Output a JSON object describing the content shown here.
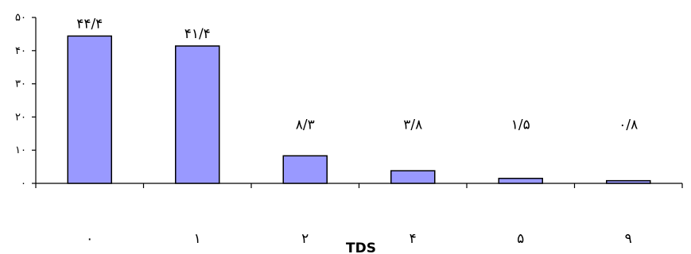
{
  "chart_data": {
    "type": "bar",
    "categories": [
      "۰",
      "۱",
      "۲",
      "۴",
      "۵",
      "۹"
    ],
    "values": [
      44.4,
      41.4,
      8.3,
      3.8,
      1.5,
      0.8
    ],
    "data_labels": [
      "۴۴/۴",
      "۴۱/۴",
      "۸/۳",
      "۳/۸",
      "۱/۵",
      "۰/۸"
    ],
    "xlabel": "TDS",
    "ylabel": "",
    "ylim": [
      0,
      50
    ],
    "yticks": [
      0,
      10,
      20,
      30,
      40,
      50
    ],
    "ytick_labels": [
      "۰",
      "۱۰",
      "۲۰",
      "۳۰",
      "۴۰",
      "۵۰"
    ],
    "bar_color": "#9999ff",
    "bar_border_color": "#000000",
    "grid": false,
    "legend": "none"
  }
}
